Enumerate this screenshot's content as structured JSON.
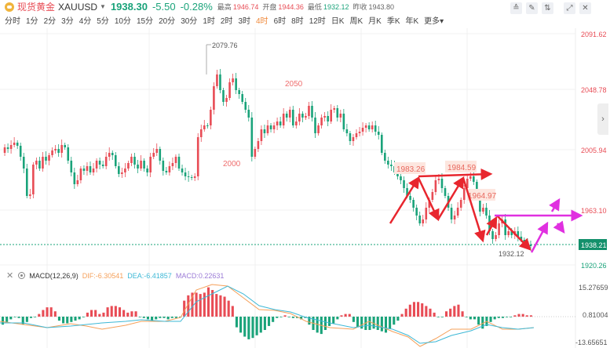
{
  "header": {
    "instrument_name": "现货黄金",
    "instrument_code": "XAUUSD",
    "last_price": "1938.30",
    "change": "-5.50",
    "change_pct": "-0.28%",
    "high_label": "最高",
    "high": "1946.74",
    "open_label": "开盘",
    "open": "1944.36",
    "low_label": "最低",
    "low": "1932.12",
    "prev_close_label": "昨收",
    "prev_close": "1943.80"
  },
  "periods": [
    "分时",
    "1分",
    "2分",
    "3分",
    "4分",
    "5分",
    "10分",
    "15分",
    "20分",
    "30分",
    "1时",
    "2时",
    "3时",
    "4时",
    "6时",
    "8时",
    "12时",
    "日K",
    "周K",
    "月K",
    "季K",
    "年K",
    "更多"
  ],
  "active_period": "4时",
  "toolbar": {
    "icons": [
      "indicator-icon",
      "draw-icon",
      "compare-icon",
      "fullscreen-icon",
      "close-icon"
    ]
  },
  "colors": {
    "up": "#e84c55",
    "down": "#1aa37a",
    "dif": "#f5a05a",
    "dea": "#3db8d6",
    "macd": "#9b7bd6",
    "annotation_red": "#e8262e",
    "annotation_magenta": "#e030e0"
  },
  "price_axis": [
    "2091.62",
    "2048.78",
    "2005.94",
    "1963.10",
    "1920.26"
  ],
  "current_price_tag": "1938.21",
  "annotations": {
    "high_mark": "2079.76",
    "level_2050": "2050",
    "level_2000": "2000",
    "peak1": "1983.26",
    "peak2": "1984.59",
    "mid": "1964.97",
    "low_mark": "1932.12"
  },
  "macd": {
    "name": "MACD(12,26,9)",
    "dif": "DIF:-6.30541",
    "dea": "DEA:-6.41857",
    "macd": "MACD:0.22631",
    "axis": [
      "15.27659",
      "0.81004",
      "-13.65651"
    ]
  },
  "chart_data": {
    "type": "candlestick",
    "title": "现货黄金 XAUUSD 4时",
    "ylim": [
      1920.26,
      2091.62
    ],
    "y_ticks": [
      2091.62,
      2048.78,
      2005.94,
      1963.1,
      1920.26
    ],
    "stats": {
      "last": 1938.3,
      "change": -5.5,
      "change_pct": -0.28,
      "high": 1946.74,
      "open": 1944.36,
      "low": 1932.12,
      "prev_close": 1943.8
    },
    "annotations": [
      {
        "text": "2079.76",
        "type": "high"
      },
      {
        "text": "2050",
        "type": "label"
      },
      {
        "text": "2000",
        "type": "label"
      },
      {
        "text": "1983.26",
        "type": "peak"
      },
      {
        "text": "1984.59",
        "type": "peak"
      },
      {
        "text": "1964.97",
        "type": "label"
      },
      {
        "text": "1932.12",
        "type": "low"
      }
    ],
    "indicator": {
      "name": "MACD(12,26,9)",
      "DIF": -6.30541,
      "DEA": -6.41857,
      "MACD": 0.22631,
      "ylim": [
        -13.65651,
        15.27659
      ],
      "y_ticks": [
        15.27659,
        0.81004,
        -13.65651
      ]
    }
  }
}
